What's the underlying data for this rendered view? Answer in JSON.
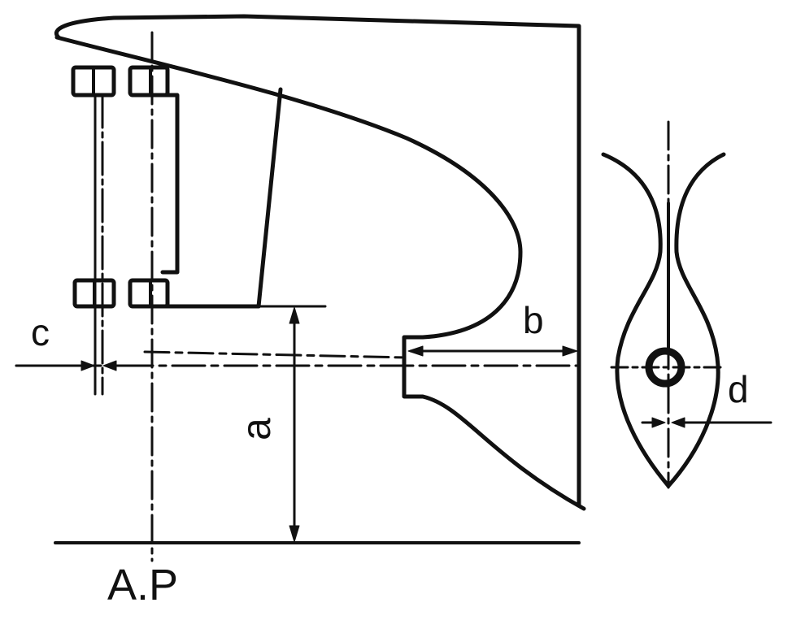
{
  "labels": {
    "a": "a",
    "b": "b",
    "c": "c",
    "d": "d",
    "ap": "A.P"
  },
  "colors": {
    "ink": "#111111",
    "background": "#ffffff"
  }
}
